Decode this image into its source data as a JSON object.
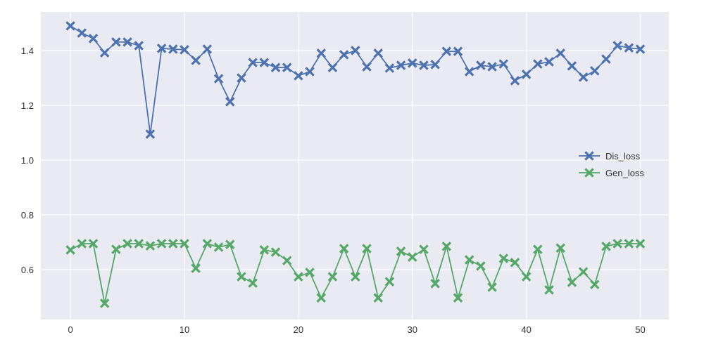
{
  "chart_data": {
    "type": "line",
    "title": "",
    "xlabel": "",
    "ylabel": "",
    "xlim": [
      -2.6,
      52.5
    ],
    "ylim": [
      0.418,
      1.541
    ],
    "xticks": [
      0,
      10,
      20,
      30,
      40,
      50
    ],
    "yticks": [
      0.6,
      0.8,
      1.0,
      1.2,
      1.4
    ],
    "xtick_labels": [
      "0",
      "10",
      "20",
      "30",
      "40",
      "50"
    ],
    "ytick_labels": [
      "0.6",
      "0.8",
      "1.0",
      "1.2",
      "1.4"
    ],
    "grid": true,
    "legend_position": "center-right",
    "x": [
      0,
      1,
      2,
      3,
      4,
      5,
      6,
      7,
      8,
      9,
      10,
      11,
      12,
      13,
      14,
      15,
      16,
      17,
      18,
      19,
      20,
      21,
      22,
      23,
      24,
      25,
      26,
      27,
      28,
      29,
      30,
      31,
      32,
      33,
      34,
      35,
      36,
      37,
      38,
      39,
      40,
      41,
      42,
      43,
      44,
      45,
      46,
      47,
      48,
      49,
      50
    ],
    "series": [
      {
        "name": "Dis_loss",
        "color": "#4c72b0",
        "marker": "X",
        "values": [
          1.49,
          1.464,
          1.444,
          1.392,
          1.431,
          1.431,
          1.418,
          1.095,
          1.408,
          1.405,
          1.403,
          1.364,
          1.405,
          1.297,
          1.213,
          1.3,
          1.356,
          1.356,
          1.338,
          1.338,
          1.308,
          1.323,
          1.39,
          1.338,
          1.385,
          1.4,
          1.341,
          1.39,
          1.336,
          1.346,
          1.354,
          1.346,
          1.349,
          1.397,
          1.397,
          1.323,
          1.346,
          1.341,
          1.351,
          1.29,
          1.313,
          1.351,
          1.359,
          1.39,
          1.344,
          1.303,
          1.326,
          1.369,
          1.418,
          1.41,
          1.405
        ]
      },
      {
        "name": "Gen_loss",
        "color": "#55a868",
        "marker": "X",
        "values": [
          0.672,
          0.695,
          0.695,
          0.477,
          0.674,
          0.695,
          0.695,
          0.687,
          0.695,
          0.695,
          0.695,
          0.605,
          0.695,
          0.682,
          0.692,
          0.574,
          0.551,
          0.672,
          0.664,
          0.633,
          0.574,
          0.59,
          0.497,
          0.574,
          0.677,
          0.574,
          0.677,
          0.497,
          0.556,
          0.667,
          0.646,
          0.674,
          0.549,
          0.685,
          0.497,
          0.636,
          0.613,
          0.536,
          0.641,
          0.626,
          0.574,
          0.674,
          0.526,
          0.679,
          0.554,
          0.592,
          0.546,
          0.685,
          0.695,
          0.695,
          0.695
        ]
      }
    ]
  }
}
